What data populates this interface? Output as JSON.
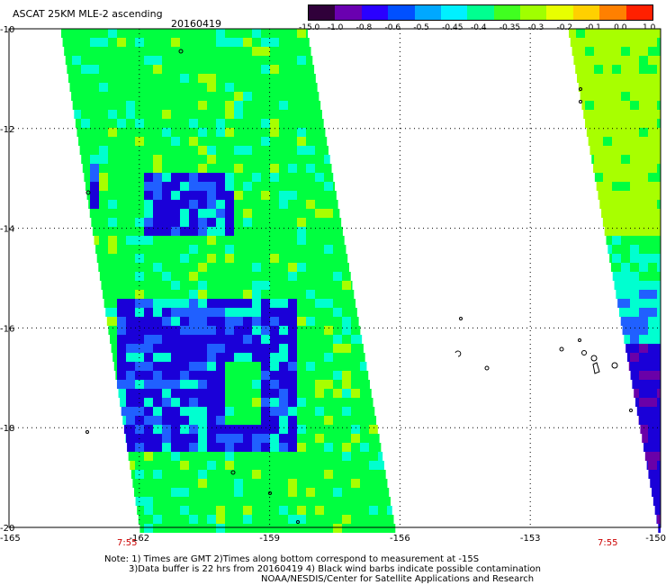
{
  "header": {
    "title": "ASCAT 25KM MLE-2 ascending",
    "date": "20160419"
  },
  "colorbar": {
    "labels": [
      "-15.0",
      "-1.0",
      "-0.8",
      "-0.6",
      "-0.5",
      "-0.45",
      "-0.4",
      "-0.35",
      "-0.3",
      "-0.2",
      "-0.1",
      "0.0",
      "1.0"
    ],
    "colors": [
      "#30003a",
      "#6a00b0",
      "#2a00ff",
      "#0050ff",
      "#00a8ff",
      "#00f0ff",
      "#00ff90",
      "#40ff20",
      "#a0ff00",
      "#e8ff00",
      "#ffd000",
      "#ff8000",
      "#ff2000"
    ]
  },
  "axes": {
    "lat_labels": [
      "-10",
      "-12",
      "-14",
      "-16",
      "-18",
      "-20"
    ],
    "lon_labels": [
      "-165",
      "-162",
      "-159",
      "-156",
      "-153",
      "-150"
    ],
    "lat_range": [
      -20,
      -10
    ],
    "lon_range": [
      -165,
      -150
    ]
  },
  "time_labels": [
    {
      "lon": -162,
      "text": "7:55"
    },
    {
      "lon": -151.5,
      "text": "7:55"
    }
  ],
  "notes": {
    "line1": "Note: 1) Times are GMT 2)Times along bottom correspond to measurement at -15S",
    "line2": "3)Data buffer is 22 hrs from 20160419 4) Black wind barbs indicate possible contamination",
    "line3": "NOAA/NESDIS/Center for Satellite Applications and Research"
  },
  "legend_meaning": {
    "swath_colors": [
      "#00ff40",
      "#00ffd0",
      "#2060ff",
      "#1a00d8",
      "#6a00a8",
      "#a8ff00"
    ]
  }
}
